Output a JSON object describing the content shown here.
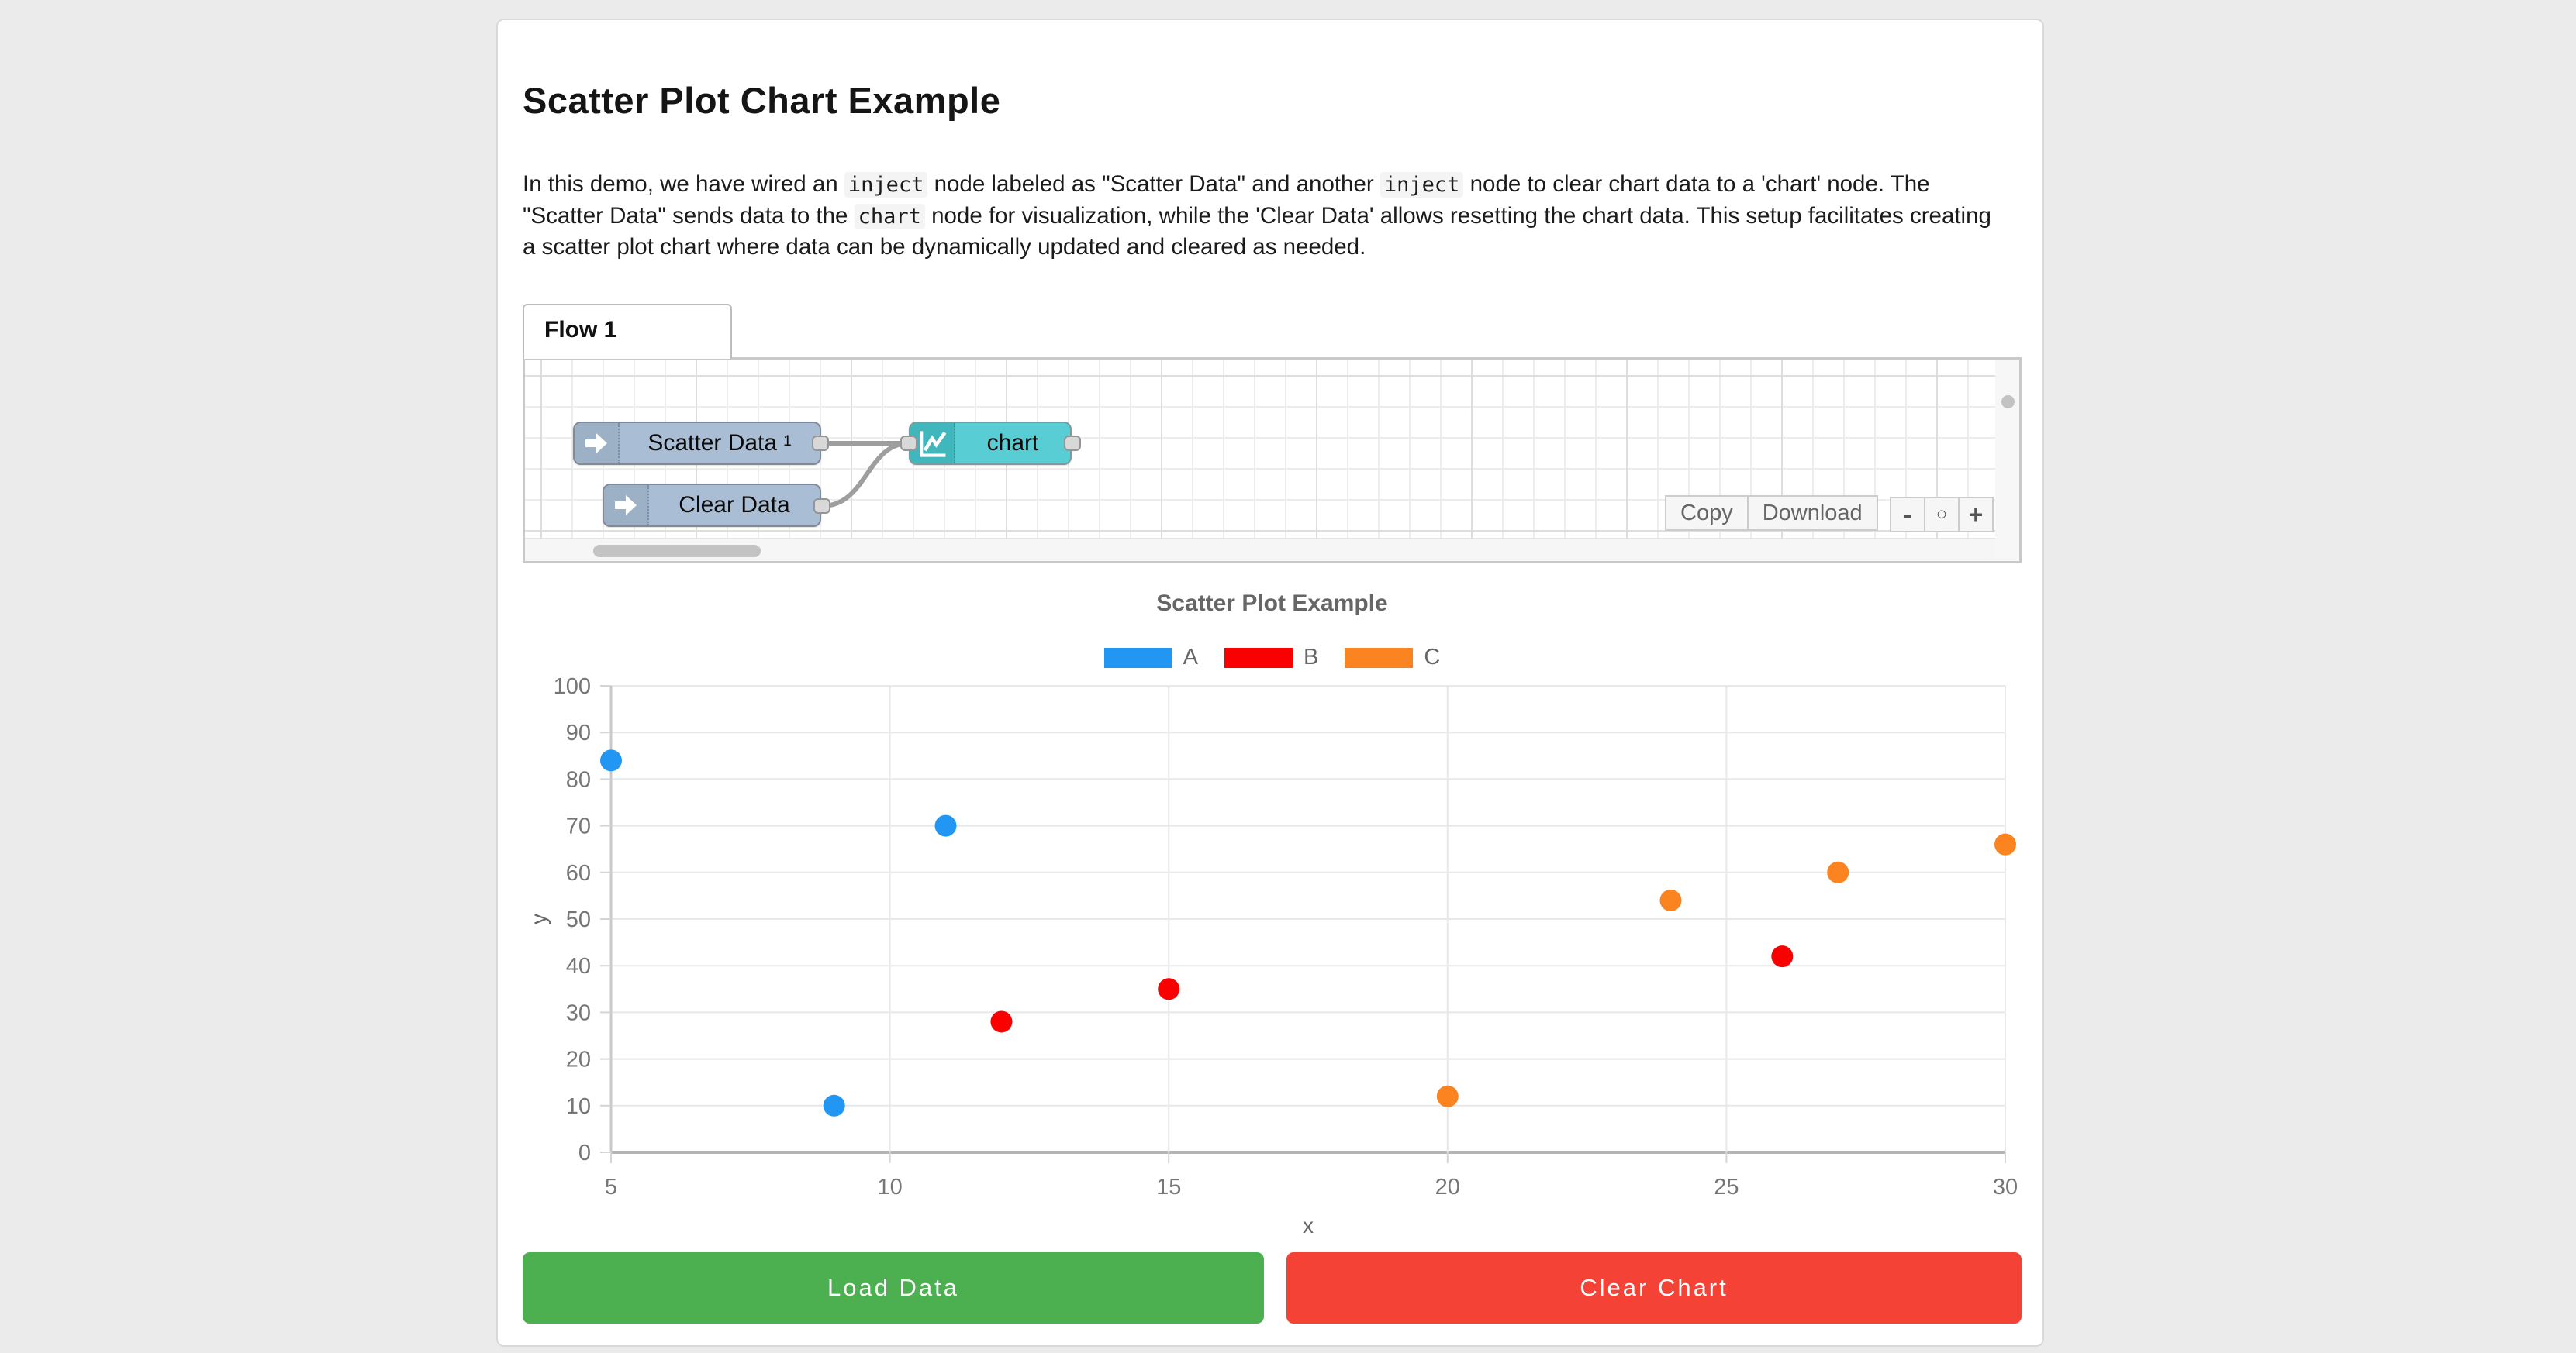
{
  "page": {
    "heading": "Scatter Plot Chart Example"
  },
  "description": {
    "segments": [
      {
        "code": false,
        "text": "In this demo, we have wired an "
      },
      {
        "code": true,
        "text": "inject"
      },
      {
        "code": false,
        "text": " node labeled as \"Scatter Data\" and another "
      },
      {
        "code": true,
        "text": "inject"
      },
      {
        "code": false,
        "text": " node to clear chart data to a 'chart' node. The \"Scatter Data\" sends data to the "
      },
      {
        "code": true,
        "text": "chart"
      },
      {
        "code": false,
        "text": " node for visualization, while the 'Clear Data' allows resetting the chart data. This setup facilitates creating a scatter plot chart where data can be dynamically updated and cleared as needed."
      }
    ]
  },
  "flow_editor": {
    "tab_label": "Flow 1",
    "nodes": {
      "scatter_inject": {
        "label": "Scatter Data",
        "superscript": "1",
        "type": "inject"
      },
      "clear_inject": {
        "label": "Clear Data",
        "type": "inject"
      },
      "chart_node": {
        "label": "chart",
        "type": "chart"
      }
    },
    "colors": {
      "inject_body": "#a9bdd5",
      "inject_icon_bg": "#9cb0c6",
      "chart_body": "#58cdd3",
      "chart_icon_bg": "#3fb7bd",
      "wire": "#9e9e9e"
    },
    "toolbar": {
      "copy": "Copy",
      "download": "Download"
    },
    "zoom_controls": {
      "zoom_out": "-",
      "zoom_reset": "○",
      "zoom_in": "+"
    }
  },
  "chart_data": {
    "type": "scatter",
    "title": "Scatter Plot Example",
    "xlabel": "x",
    "ylabel": "y",
    "xlim": [
      5,
      30
    ],
    "ylim": [
      0,
      100
    ],
    "x_ticks": [
      5,
      10,
      15,
      20,
      25,
      30
    ],
    "y_ticks": [
      0,
      10,
      20,
      30,
      40,
      50,
      60,
      70,
      80,
      90,
      100
    ],
    "grid": true,
    "legend_position": "top",
    "series": [
      {
        "name": "A",
        "color": "#2196f3",
        "points": [
          [
            5,
            84
          ],
          [
            9,
            10
          ],
          [
            11,
            70
          ]
        ]
      },
      {
        "name": "B",
        "color": "#fb0000",
        "points": [
          [
            12,
            28
          ],
          [
            15,
            35
          ],
          [
            26,
            42
          ]
        ]
      },
      {
        "name": "C",
        "color": "#fb8320",
        "points": [
          [
            20,
            12
          ],
          [
            24,
            54
          ],
          [
            27,
            60
          ],
          [
            30,
            66
          ]
        ]
      }
    ]
  },
  "actions": {
    "load": {
      "label": "Load Data",
      "color": "#4caf50"
    },
    "clear": {
      "label": "Clear Chart",
      "color": "#f44336"
    }
  }
}
